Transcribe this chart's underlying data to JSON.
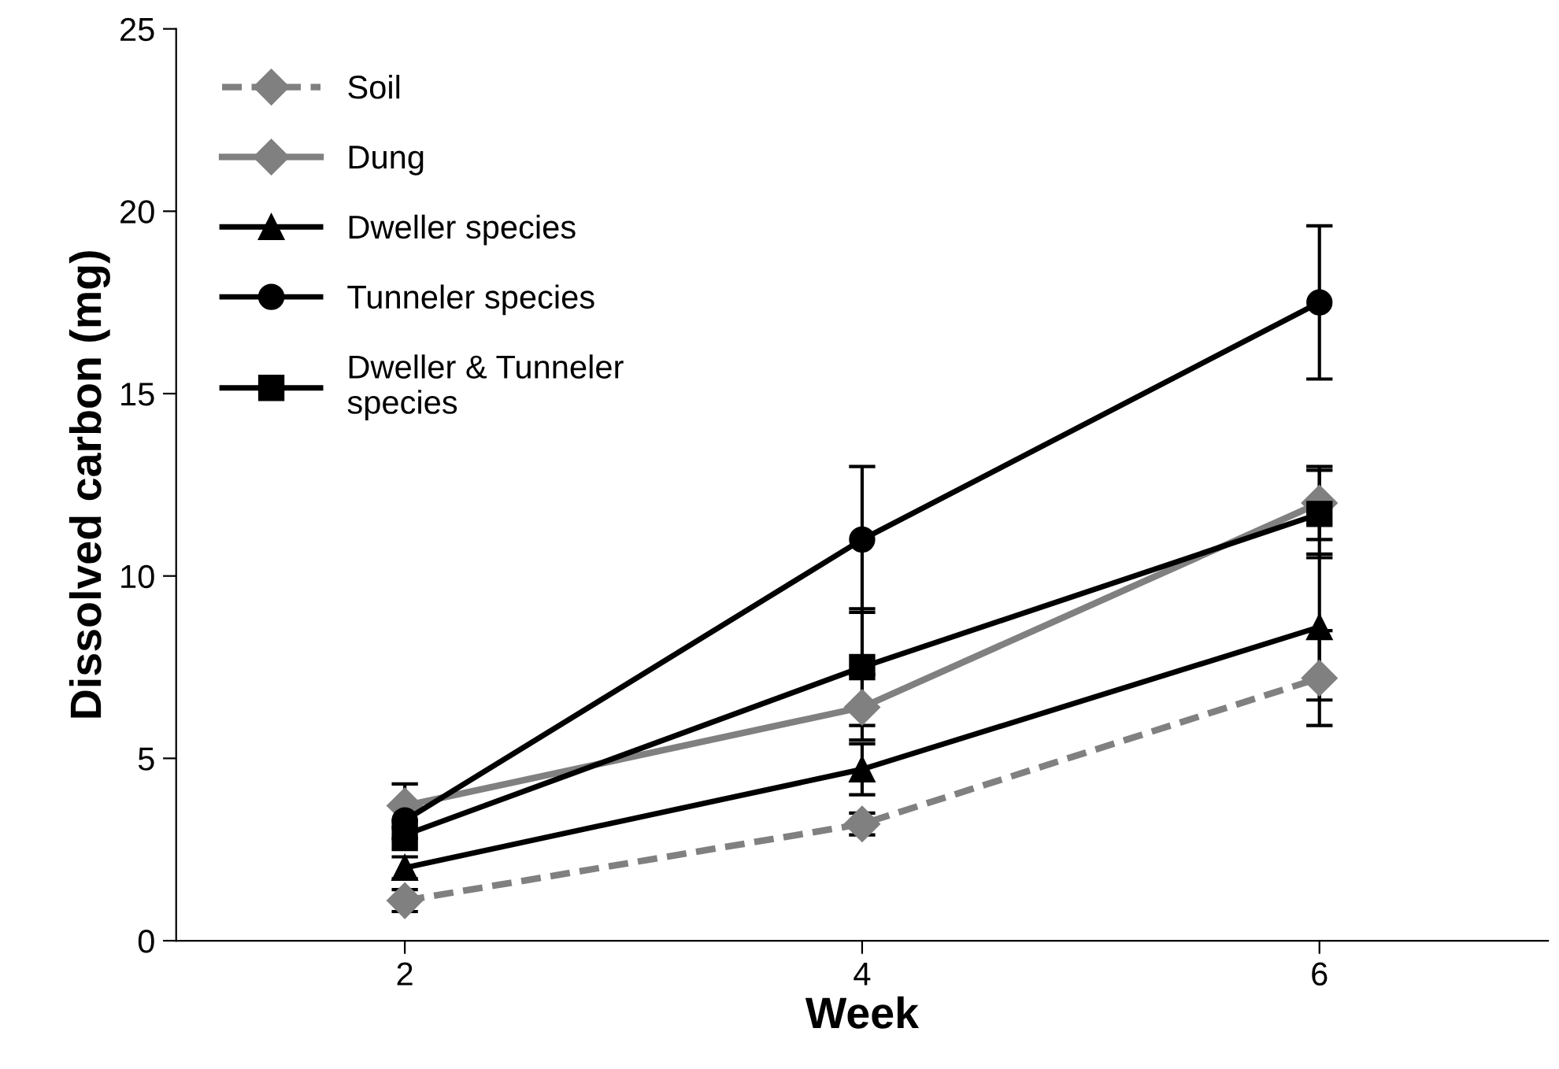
{
  "chart_data": {
    "type": "line",
    "xlabel": "Week",
    "ylabel": "Dissolved carbon (mg)",
    "x": [
      2,
      4,
      6
    ],
    "xlim": [
      1,
      7
    ],
    "xticks": [
      2,
      4,
      6
    ],
    "ylim": [
      0,
      25
    ],
    "yticks": [
      0,
      5,
      10,
      15,
      20,
      25
    ],
    "grid": false,
    "legend": "top left",
    "series": [
      {
        "name": "Soil",
        "color": "#808080",
        "marker": "diamond",
        "line_style": "dashed",
        "values": [
          1.1,
          3.2,
          7.2
        ],
        "errors": [
          0.3,
          0.3,
          1.3
        ]
      },
      {
        "name": "Dung",
        "color": "#808080",
        "marker": "diamond",
        "line_style": "solid",
        "values": [
          3.7,
          6.4,
          12.0
        ],
        "errors": [
          0.6,
          0.9,
          1.0
        ]
      },
      {
        "name": "Dweller species",
        "color": "#000000",
        "marker": "triangle",
        "line_style": "solid",
        "values": [
          2.0,
          4.7,
          8.6
        ],
        "errors": [
          0.3,
          0.7,
          2.0
        ]
      },
      {
        "name": "Tunneler species",
        "color": "#000000",
        "marker": "circle",
        "line_style": "solid",
        "values": [
          3.3,
          11.0,
          17.5
        ],
        "errors": [
          0.5,
          2.0,
          2.1
        ]
      },
      {
        "name": "Dweller & Tunneler species",
        "color": "#000000",
        "marker": "square",
        "line_style": "solid",
        "values": [
          2.9,
          7.5,
          11.7
        ],
        "errors": [
          0.4,
          1.6,
          1.2
        ]
      }
    ]
  }
}
